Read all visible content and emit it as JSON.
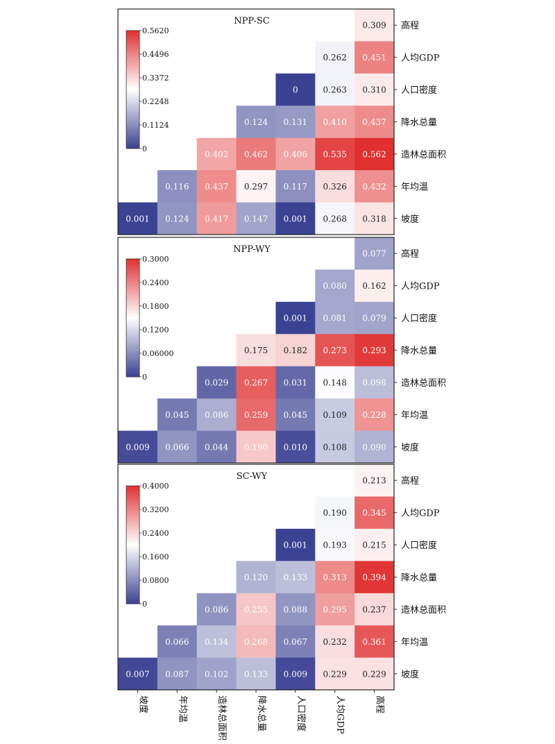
{
  "rows": [
    "高程",
    "人均GDP",
    "人口密度",
    "降水总量",
    "造林总面积",
    "年均温",
    "坡度"
  ],
  "cols": [
    "坡度",
    "年均温",
    "造林总面积",
    "降水总量",
    "人口密度",
    "人均GDP",
    "高程"
  ],
  "chart_data": [
    {
      "type": "heatmap",
      "title": "NPP-SC",
      "vmin": 0,
      "vmax": 0.562,
      "colorbar_ticks": [
        "0.5620",
        "0.4496",
        "0.3372",
        "0.2248",
        "0.1124",
        "0"
      ],
      "colors": {
        "low": "#3b4192",
        "mid": "#ffffff",
        "high": "#e03030"
      },
      "cells": [
        [
          "",
          "",
          "",
          "",
          "",
          "",
          "0.309"
        ],
        [
          "",
          "",
          "",
          "",
          "",
          "0.262",
          "0.451"
        ],
        [
          "",
          "",
          "",
          "",
          "0",
          "0.263",
          "0.310"
        ],
        [
          "",
          "",
          "",
          "0.124",
          "0.131",
          "0.410",
          "0.437"
        ],
        [
          "",
          "",
          "0.402",
          "0.462",
          "0.406",
          "0.535",
          "0.562"
        ],
        [
          "",
          "0.116",
          "0.437",
          "0.297",
          "0.117",
          "0.326",
          "0.432"
        ],
        [
          "0.001",
          "0.124",
          "0.417",
          "0.147",
          "0.001",
          "0.268",
          "0.318"
        ]
      ]
    },
    {
      "type": "heatmap",
      "title": "NPP-WY",
      "vmin": 0,
      "vmax": 0.3,
      "colorbar_ticks": [
        "0.3000",
        "0.2400",
        "0.1800",
        "0.1200",
        "0.06000",
        "0"
      ],
      "colors": {
        "low": "#3b4192",
        "mid": "#ffffff",
        "high": "#e03030"
      },
      "cells": [
        [
          "",
          "",
          "",
          "",
          "",
          "",
          "0.077"
        ],
        [
          "",
          "",
          "",
          "",
          "",
          "0.080",
          "0.162"
        ],
        [
          "",
          "",
          "",
          "",
          "0.001",
          "0.081",
          "0.079"
        ],
        [
          "",
          "",
          "",
          "0.175",
          "0.182",
          "0.273",
          "0.293"
        ],
        [
          "",
          "",
          "0.029",
          "0.267",
          "0.031",
          "0.148",
          "0.098"
        ],
        [
          "",
          "0.045",
          "0.086",
          "0.259",
          "0.045",
          "0.109",
          "0.228"
        ],
        [
          "0.009",
          "0.066",
          "0.044",
          "0.190",
          "0.010",
          "0.108",
          "0.090"
        ]
      ]
    },
    {
      "type": "heatmap",
      "title": "SC-WY",
      "vmin": 0,
      "vmax": 0.4,
      "colorbar_ticks": [
        "0.4000",
        "0.3200",
        "0.2400",
        "0.1600",
        "0.0800",
        "0"
      ],
      "colors": {
        "low": "#3b4192",
        "mid": "#ffffff",
        "high": "#e03030"
      },
      "cells": [
        [
          "",
          "",
          "",
          "",
          "",
          "",
          "0.213"
        ],
        [
          "",
          "",
          "",
          "",
          "",
          "0.190",
          "0.345"
        ],
        [
          "",
          "",
          "",
          "",
          "0.001",
          "0.193",
          "0.215"
        ],
        [
          "",
          "",
          "",
          "0.120",
          "0.133",
          "0.313",
          "0.394"
        ],
        [
          "",
          "",
          "0.086",
          "0.255",
          "0.088",
          "0.295",
          "0.237"
        ],
        [
          "",
          "0.066",
          "0.134",
          "0.268",
          "0.067",
          "0.232",
          "0.361"
        ],
        [
          "0.007",
          "0.087",
          "0.102",
          "0.133",
          "0.009",
          "0.229",
          "0.229"
        ]
      ]
    }
  ]
}
